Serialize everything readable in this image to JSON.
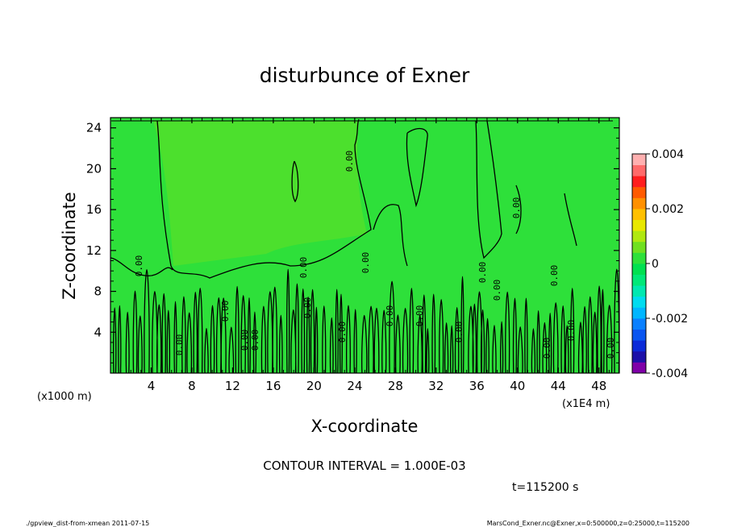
{
  "chart_data": {
    "type": "heatmap",
    "title": "disturbunce of Exner",
    "xlabel": "X-coordinate",
    "ylabel": "Z-coordinate",
    "x_unit_label": "(x1E4 m)",
    "y_unit_label": "(x1000 m)",
    "xlim": [
      0,
      50
    ],
    "ylim": [
      0,
      25
    ],
    "x_ticks": [
      4,
      8,
      12,
      16,
      20,
      24,
      28,
      32,
      36,
      40,
      44,
      48
    ],
    "y_ticks": [
      4,
      8,
      12,
      16,
      20,
      24
    ],
    "colorbar": {
      "min": -0.004,
      "max": 0.004,
      "ticks": [
        "0.004",
        "0.002",
        "0",
        "-0.002",
        "-0.004"
      ],
      "tick_values": [
        0.004,
        0.002,
        0,
        -0.002,
        -0.004
      ],
      "colors": [
        "#7f00a8",
        "#1c10a8",
        "#0b2ad8",
        "#0a55f0",
        "#0a80ff",
        "#00b6ff",
        "#00dcef",
        "#00e8b0",
        "#00e878",
        "#00e050",
        "#2ee03a",
        "#70e020",
        "#b0e810",
        "#e8e800",
        "#ffc000",
        "#ff9000",
        "#ff5a00",
        "#ff1e1e",
        "#ff6a6a",
        "#ffb0b0"
      ]
    },
    "contour_interval_label": "CONTOUR INTERVAL = 1.000E-03",
    "contour_labels": [
      "0.00",
      "0.00",
      "0.00",
      "0.00",
      "0.00",
      "0.00",
      "0.00",
      "0.00",
      "0.00",
      "0.00",
      "0.00",
      "0.00",
      "0.00",
      "0.00",
      "0.00",
      "0.00",
      "0.00",
      "0.00",
      "0.00",
      "0.00"
    ],
    "time_label": "t=115200 s",
    "grid": false,
    "legend": "right"
  },
  "footer": {
    "left": "./gpview_dist-from-xmean  2011-07-15",
    "right": "MarsCond_Exner.nc@Exner,x=0:500000,z=0:25000,t=115200"
  },
  "colors": {
    "field_base": "#2ee03a",
    "field_light": "#70e020",
    "contour": "#000000"
  }
}
